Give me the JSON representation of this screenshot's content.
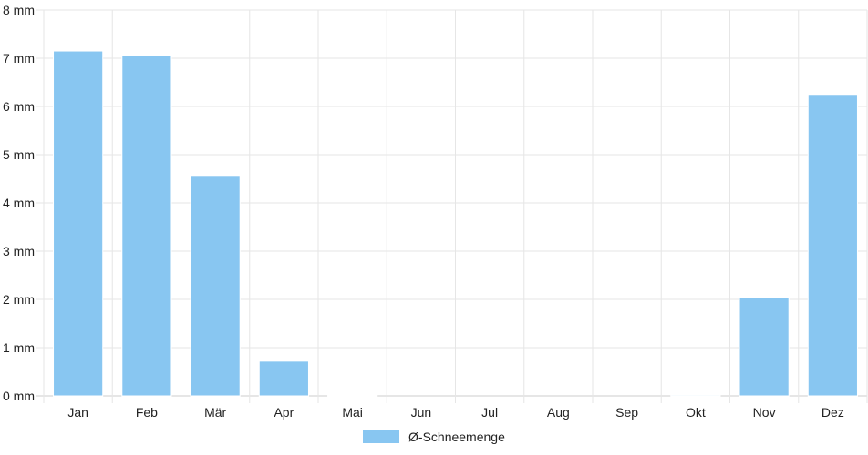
{
  "chart_data": {
    "type": "bar",
    "categories": [
      "Jan",
      "Feb",
      "Mär",
      "Apr",
      "Mai",
      "Jun",
      "Jul",
      "Aug",
      "Sep",
      "Okt",
      "Nov",
      "Dez"
    ],
    "series": [
      {
        "name": "Ø-Schneemenge",
        "values": [
          7.15,
          7.05,
          4.57,
          0.72,
          0.01,
          0.0,
          0.0,
          0.0,
          0.0,
          0.02,
          2.03,
          6.25
        ]
      }
    ],
    "ylim": [
      0,
      8
    ],
    "yticks": [
      0,
      1,
      2,
      3,
      4,
      5,
      6,
      7,
      8
    ],
    "ytick_labels": [
      "0 mm",
      "1 mm",
      "2 mm",
      "3 mm",
      "4 mm",
      "5 mm",
      "6 mm",
      "7 mm",
      "8 mm"
    ],
    "grid": true,
    "legend_position": "bottom",
    "bar_color": "#88C6F1"
  }
}
